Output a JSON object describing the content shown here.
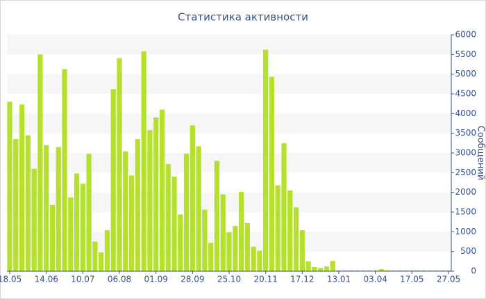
{
  "chart_data": {
    "type": "bar",
    "title": "Статистика активности",
    "y_label": "Сообщений",
    "categories": [
      "18.05",
      null,
      null,
      null,
      null,
      null,
      "14.06",
      null,
      null,
      null,
      null,
      null,
      "10.07",
      null,
      null,
      null,
      null,
      null,
      "06.08",
      null,
      null,
      null,
      null,
      null,
      "01.09",
      null,
      null,
      null,
      null,
      null,
      "28.09",
      null,
      null,
      null,
      null,
      null,
      "25.10",
      null,
      null,
      null,
      null,
      null,
      "20.11",
      null,
      null,
      null,
      null,
      null,
      "17.12",
      null,
      null,
      null,
      null,
      null,
      "13.01",
      null,
      null,
      null,
      null,
      null,
      "03.04",
      null,
      null,
      null,
      null,
      null,
      "17.05",
      null,
      null,
      null,
      null,
      null,
      "27.05"
    ],
    "values": [
      4300,
      3350,
      4230,
      3450,
      2600,
      5500,
      3200,
      1680,
      3150,
      5130,
      1870,
      2480,
      2220,
      2980,
      750,
      480,
      1040,
      4620,
      5400,
      3040,
      2430,
      3350,
      5580,
      3580,
      3900,
      4100,
      2720,
      2400,
      1440,
      2980,
      3700,
      3170,
      1560,
      720,
      2800,
      1950,
      990,
      1150,
      2010,
      1220,
      620,
      520,
      5620,
      4930,
      2180,
      3250,
      2050,
      1620,
      1040,
      250,
      110,
      80,
      120,
      260,
      20,
      20,
      20,
      20,
      20,
      20,
      20,
      50,
      20,
      20,
      20,
      20,
      20,
      20,
      20,
      20,
      20,
      20,
      20
    ],
    "color": "#b5e02c",
    "ylim": [
      0,
      6000
    ],
    "yticks": [
      0,
      500,
      1000,
      1500,
      2000,
      2500,
      3000,
      3500,
      4000,
      4500,
      5000,
      5500,
      6000
    ],
    "y_axis_side": "right",
    "grid": true
  }
}
